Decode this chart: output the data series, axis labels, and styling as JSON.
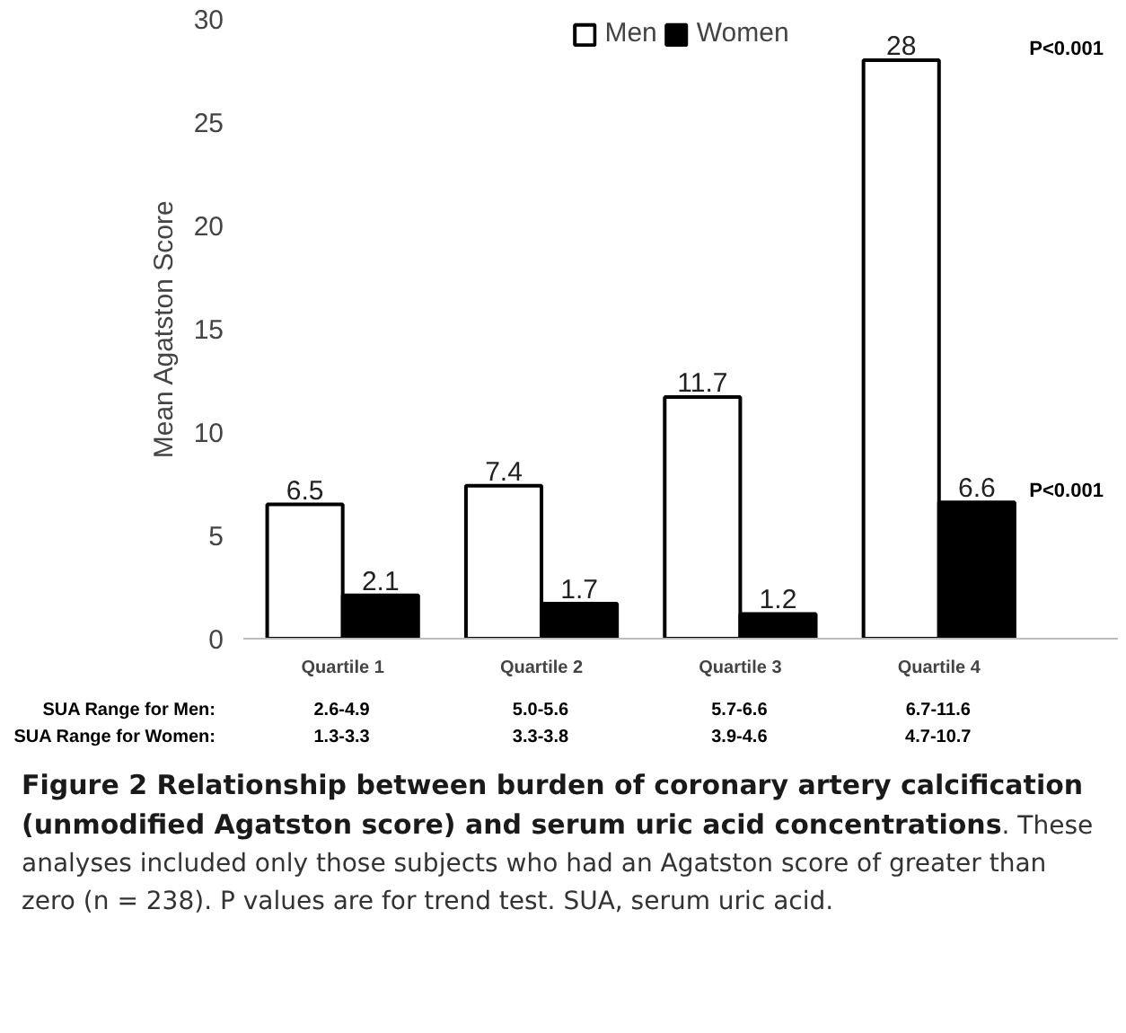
{
  "chart_data": {
    "type": "bar",
    "title": "Figure 2 Relationship between burden of coronary artery calcification (unmodified Agatston score) and serum uric acid concentrations",
    "subtitle": ". These analyses included only those subjects who had an Agatston score of greater than zero (n = 238). P values are for trend test. SUA, serum uric acid.",
    "ylabel": "Mean Agatston Score",
    "categories": [
      "Quartile 1",
      "Quartile 2",
      "Quartile 3",
      "Quartile 4"
    ],
    "series": [
      {
        "name": "Men",
        "color": "#ffffff",
        "values": [
          6.5,
          7.4,
          11.7,
          28
        ]
      },
      {
        "name": "Women",
        "color": "#000000",
        "values": [
          2.1,
          1.7,
          1.2,
          6.6
        ]
      }
    ],
    "ylim": [
      0,
      30
    ],
    "yticks": [
      0,
      5,
      10,
      15,
      20,
      25,
      30
    ],
    "data_labels": true,
    "grid": false,
    "legend": "top",
    "annotations": [
      "P<0.001",
      "P<0.001",
      "SUA Range for Men:",
      "SUA Range for Women:",
      "2.6-4.9",
      "1.3-3.3",
      "5.0-5.6",
      "3.3-3.8",
      "5.7-6.6",
      "3.9-4.6",
      "6.7-11.6",
      "4.7-10.7"
    ]
  }
}
